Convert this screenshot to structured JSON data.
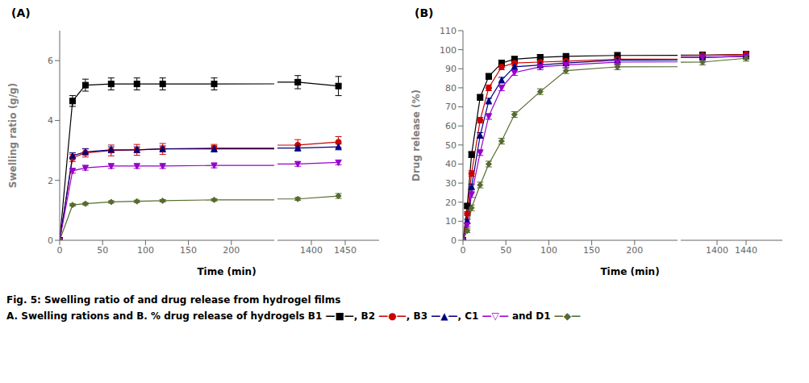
{
  "chart_data": [
    {
      "type": "line",
      "title": "(A)",
      "x_label": "Time (min)",
      "y_label": "Swelling ratio (g/g)",
      "xlim": [
        [
          0,
          250
        ],
        [
          1350,
          1500
        ]
      ],
      "xticks": [
        [
          0,
          50,
          100,
          150,
          200
        ],
        [
          1400,
          1450
        ]
      ],
      "ylim": [
        0,
        7
      ],
      "yticks": [
        0,
        2,
        4,
        6
      ],
      "grid": false,
      "series": [
        {
          "name": "B1",
          "color": "#000000",
          "marker": "square",
          "line_style": "solid",
          "x": [
            0,
            15,
            30,
            60,
            90,
            120,
            180,
            1380,
            1440
          ],
          "values": [
            0,
            4.65,
            5.18,
            5.22,
            5.22,
            5.22,
            5.22,
            5.28,
            5.15
          ],
          "errors": [
            0,
            0.18,
            0.2,
            0.2,
            0.2,
            0.2,
            0.2,
            0.22,
            0.32
          ]
        },
        {
          "name": "B2",
          "color": "#cc0000",
          "marker": "circle",
          "line_style": "solid",
          "x": [
            0,
            15,
            30,
            60,
            90,
            120,
            180,
            1380,
            1440
          ],
          "values": [
            0,
            2.75,
            2.92,
            3.0,
            3.02,
            3.05,
            3.08,
            3.18,
            3.28
          ],
          "errors": [
            0,
            0.12,
            0.14,
            0.18,
            0.18,
            0.18,
            0.12,
            0.18,
            0.18
          ]
        },
        {
          "name": "B3",
          "color": "#000080",
          "marker": "triangle-up",
          "line_style": "solid",
          "x": [
            0,
            15,
            30,
            60,
            90,
            120,
            180,
            1380,
            1440
          ],
          "values": [
            0,
            2.82,
            2.95,
            3.02,
            3.02,
            3.05,
            3.05,
            3.08,
            3.12
          ],
          "errors": [
            0,
            0.1,
            0.1,
            0.1,
            0.1,
            0.1,
            0.1,
            0.1,
            0.1
          ]
        },
        {
          "name": "C1",
          "color": "#9900cc",
          "marker": "triangle-down",
          "line_style": "solid",
          "x": [
            0,
            15,
            30,
            60,
            90,
            120,
            180,
            1380,
            1440
          ],
          "values": [
            0,
            2.32,
            2.42,
            2.48,
            2.48,
            2.48,
            2.5,
            2.55,
            2.6
          ],
          "errors": [
            0,
            0.08,
            0.08,
            0.08,
            0.08,
            0.08,
            0.08,
            0.08,
            0.08
          ]
        },
        {
          "name": "D1",
          "color": "#556b2f",
          "marker": "diamond",
          "line_style": "solid",
          "x": [
            0,
            15,
            30,
            60,
            90,
            120,
            180,
            1380,
            1440
          ],
          "values": [
            0,
            1.18,
            1.22,
            1.28,
            1.3,
            1.32,
            1.35,
            1.38,
            1.48
          ],
          "errors": [
            0,
            0.04,
            0.04,
            0.04,
            0.04,
            0.04,
            0.04,
            0.05,
            0.08
          ]
        }
      ]
    },
    {
      "type": "line",
      "title": "(B)",
      "x_label": "Time (min)",
      "y_label": "Drug release (%)",
      "xlim": [
        [
          0,
          250
        ],
        [
          1350,
          1490
        ]
      ],
      "xticks": [
        [
          0,
          50,
          100,
          150,
          200
        ],
        [
          1400,
          1440
        ]
      ],
      "ylim": [
        0,
        110
      ],
      "yticks": [
        0,
        10,
        20,
        30,
        40,
        50,
        60,
        70,
        80,
        90,
        100,
        110
      ],
      "grid": false,
      "series": [
        {
          "name": "B1",
          "color": "#000000",
          "marker": "square",
          "line_style": "solid",
          "x": [
            0,
            5,
            10,
            20,
            30,
            45,
            60,
            90,
            120,
            180,
            1380,
            1440
          ],
          "values": [
            0,
            18,
            45,
            75,
            86,
            93,
            95,
            96,
            96.5,
            97,
            97.2,
            97.5
          ],
          "errors": [
            0,
            1.0,
            1.5,
            1.5,
            1.5,
            1.5,
            1.5,
            1.5,
            1.5,
            1.5,
            1.5,
            1.5
          ]
        },
        {
          "name": "B2",
          "color": "#cc0000",
          "marker": "circle",
          "line_style": "solid",
          "x": [
            0,
            5,
            10,
            20,
            30,
            45,
            60,
            90,
            120,
            180,
            1380,
            1440
          ],
          "values": [
            0,
            14,
            35,
            63,
            80,
            91,
            93,
            93.5,
            94,
            95,
            97,
            97.5
          ],
          "errors": [
            0,
            1.0,
            1.5,
            1.5,
            1.5,
            1.5,
            1.5,
            1.5,
            1.5,
            1.5,
            1.5,
            1.5
          ]
        },
        {
          "name": "B3",
          "color": "#000080",
          "marker": "triangle-up",
          "line_style": "solid",
          "x": [
            0,
            5,
            10,
            20,
            30,
            45,
            60,
            90,
            120,
            180,
            1380,
            1440
          ],
          "values": [
            0,
            10,
            28,
            55,
            73,
            84,
            91,
            92,
            93,
            94.5,
            96,
            96.5
          ],
          "errors": [
            0,
            1.0,
            1.5,
            1.5,
            1.5,
            1.5,
            1.5,
            1.5,
            1.5,
            1.5,
            1.5,
            1.5
          ]
        },
        {
          "name": "C1",
          "color": "#9900cc",
          "marker": "triangle-down",
          "line_style": "solid",
          "x": [
            0,
            5,
            10,
            20,
            30,
            45,
            60,
            90,
            120,
            180,
            1380,
            1440
          ],
          "values": [
            0,
            8,
            24,
            46,
            65,
            80,
            88,
            91,
            92,
            93.5,
            96,
            96.5
          ],
          "errors": [
            0,
            1.0,
            1.5,
            1.5,
            1.5,
            1.5,
            1.5,
            1.5,
            1.5,
            1.5,
            1.5,
            1.5
          ]
        },
        {
          "name": "D1",
          "color": "#556b2f",
          "marker": "diamond",
          "line_style": "solid",
          "x": [
            0,
            5,
            10,
            20,
            30,
            45,
            60,
            90,
            120,
            180,
            1380,
            1440
          ],
          "values": [
            0,
            5,
            17,
            29,
            40,
            52,
            66,
            78,
            89,
            91,
            93.5,
            95.5
          ],
          "errors": [
            0,
            1.0,
            1.5,
            1.5,
            1.5,
            1.5,
            1.5,
            1.5,
            1.5,
            1.5,
            1.5,
            1.5
          ]
        }
      ]
    }
  ],
  "annotations": [
    [
      {
        "text": "Fig. 5: Swelling ratio of and drug release from hydrogel films",
        "color": "#000000"
      }
    ],
    [
      {
        "text": "A. Swelling rations and B. % drug release of hydrogels B1 ",
        "color": "#000000"
      },
      {
        "text": "—■—",
        "color": "#000000"
      },
      {
        "text": ", B2 ",
        "color": "#000000"
      },
      {
        "text": "—●—",
        "color": "#cc0000"
      },
      {
        "text": ", B3 ",
        "color": "#000000"
      },
      {
        "text": "—▲—",
        "color": "#000080"
      },
      {
        "text": ", C1 ",
        "color": "#000000"
      },
      {
        "text": "—▽—",
        "color": "#9900cc"
      },
      {
        "text": " and D1 ",
        "color": "#000000"
      },
      {
        "text": "—◆—",
        "color": "#556b2f"
      }
    ]
  ]
}
